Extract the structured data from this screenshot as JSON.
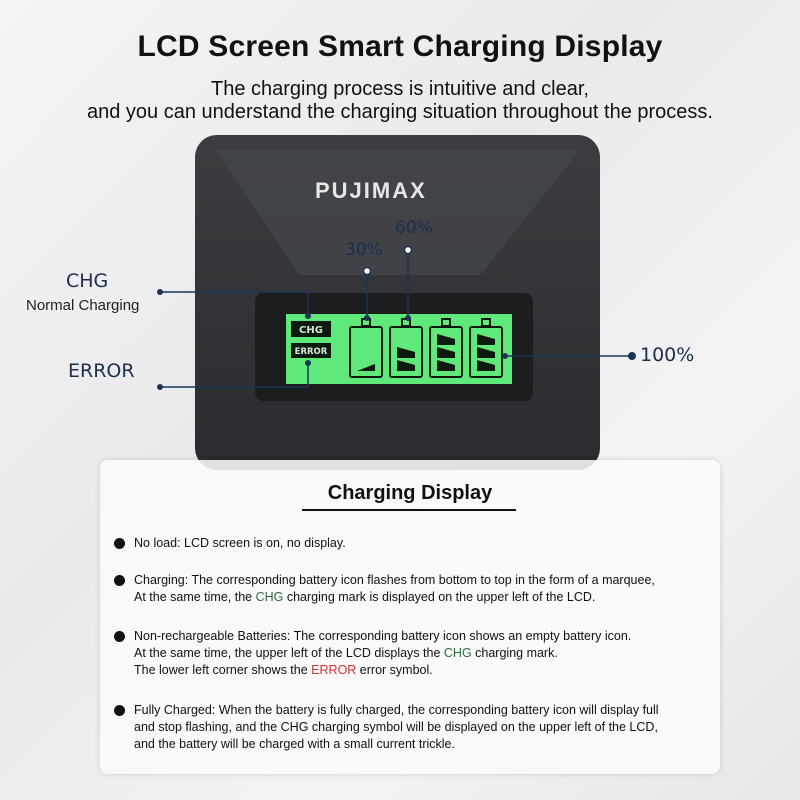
{
  "header": {
    "title": "LCD Screen Smart Charging Display",
    "subtitle_line1": "The charging process is intuitive and clear,",
    "subtitle_line2": "and you can understand the charging situation throughout the process."
  },
  "device": {
    "brand": "PUJIMAX",
    "lcd": {
      "chg": "CHG",
      "error": "ERROR",
      "battery_levels": [
        1,
        2,
        3,
        3
      ]
    },
    "callouts": {
      "chg": "CHG",
      "normal_charging": "Normal Charging",
      "error": "ERROR",
      "p30": "30%",
      "p60": "60%",
      "p100": "100%"
    },
    "colors": {
      "lcd_green": "#5fe97a",
      "body": "#2e3033",
      "callout_line": "#1c3554"
    }
  },
  "card": {
    "title": "Charging Display",
    "items": [
      {
        "a": "No load: LCD screen is on, no display."
      },
      {
        "a": "Charging: The corresponding battery icon flashes from bottom to top in the form of a marquee,",
        "b": "At the same time, the ",
        "c": "CHG",
        "d": " charging mark is displayed on the upper left of the LCD."
      },
      {
        "a": "Non-rechargeable Batteries: The corresponding battery icon shows an empty battery icon.",
        "b": "At the same time, the upper left of the LCD displays the ",
        "c": "CHG",
        "d": " charging mark.",
        "e": "The lower left corner shows the ",
        "f": "ERROR",
        "g": " error symbol."
      },
      {
        "a": "Fully Charged: When the battery is fully charged, the corresponding battery icon will display full",
        "b": "and stop flashing, and the CHG charging symbol will be displayed on the upper left of the LCD,",
        "c": "and the battery will be charged with a small current trickle."
      }
    ]
  }
}
